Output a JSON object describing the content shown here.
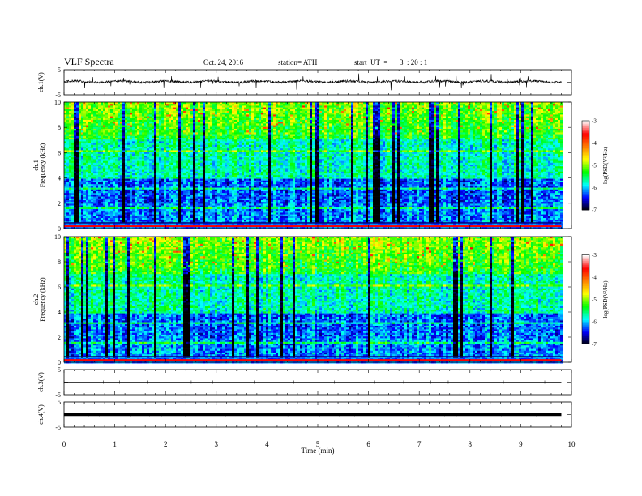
{
  "header": {
    "title": "VLF  Spectra",
    "date": "Oct. 24, 2016",
    "station": "station= ATH",
    "start_label": "start  UT  =",
    "start_time": "3  : 20 : 1"
  },
  "chart_data": [
    {
      "type": "line",
      "name": "ch1-waveform",
      "ylabel": "ch.1(V)",
      "ylim": [
        -5,
        5
      ],
      "yticks": [
        "5",
        "-5"
      ],
      "xlim": [
        0,
        10
      ],
      "baseline": 0.2,
      "color": "#000000"
    },
    {
      "type": "heatmap",
      "name": "ch1-spectrogram",
      "ylabel_channel": "ch.1",
      "ylabel": "Frequency  (kHz)",
      "ylim": [
        0,
        10
      ],
      "yticks": [
        "0",
        "2",
        "4",
        "6",
        "8",
        "10"
      ],
      "xlim": [
        0,
        10
      ],
      "data_end_min": 9.8,
      "colorbar": {
        "label": "log(PSD(V²/Hz)",
        "range": [
          -7,
          -3
        ],
        "ticks": [
          "-3",
          "-4",
          "-5",
          "-6",
          "-7"
        ]
      }
    },
    {
      "type": "heatmap",
      "name": "ch2-spectrogram",
      "ylabel_channel": "ch.2",
      "ylabel": "Frequency  (kHz)",
      "ylim": [
        0,
        10
      ],
      "yticks": [
        "0",
        "2",
        "4",
        "6",
        "8",
        "10"
      ],
      "xlim": [
        0,
        10
      ],
      "data_end_min": 9.8,
      "colorbar": {
        "label": "log(PSD(V²/Hz)",
        "range": [
          -7,
          -3
        ],
        "ticks": [
          "-3",
          "-4",
          "-5",
          "-6",
          "-7"
        ]
      }
    },
    {
      "type": "line",
      "name": "ch3-waveform",
      "ylabel": "ch.3(V)",
      "ylim": [
        -5,
        5
      ],
      "yticks": [
        "5",
        "-5"
      ],
      "xlim": [
        0,
        10
      ],
      "value": 0
    },
    {
      "type": "line",
      "name": "ch4-waveform",
      "ylabel": "ch.4(V)",
      "ylim": [
        -5,
        5
      ],
      "yticks": [
        "5",
        "-5"
      ],
      "xlim": [
        0,
        10
      ],
      "value": 0
    }
  ],
  "xaxis": {
    "label": "Time  (min)",
    "ticks": [
      "0",
      "1",
      "2",
      "3",
      "4",
      "5",
      "6",
      "7",
      "8",
      "9",
      "10"
    ]
  },
  "colors": {
    "colormap": [
      "#000000",
      "#0000ff",
      "#00ffff",
      "#00ff00",
      "#ffff00",
      "#ff8000",
      "#ff0000",
      "#ffffff"
    ]
  }
}
